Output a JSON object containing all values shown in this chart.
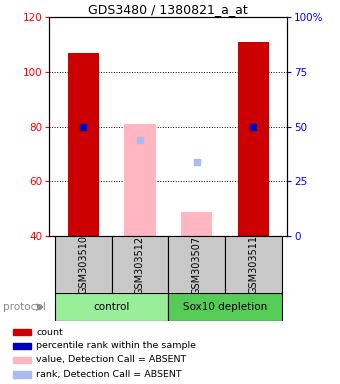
{
  "title": "GDS3480 / 1380821_a_at",
  "samples": [
    "GSM303510",
    "GSM303512",
    "GSM303507",
    "GSM303511"
  ],
  "bar_bottom": 40,
  "bar_tops": [
    107,
    81,
    49,
    111
  ],
  "bar_colors": [
    "#CC0000",
    "#FFB6C1",
    "#FFB6C1",
    "#CC0000"
  ],
  "rank_values": [
    80,
    75,
    67,
    80
  ],
  "rank_colors": [
    "#0000BB",
    "#AABBEE",
    "#AABBEE",
    "#0000BB"
  ],
  "detection_absent": [
    false,
    true,
    true,
    false
  ],
  "ylim_left": [
    40,
    120
  ],
  "ylim_right": [
    0,
    100
  ],
  "yticks_left": [
    40,
    60,
    80,
    100,
    120
  ],
  "yticks_right": [
    0,
    25,
    50,
    75,
    100
  ],
  "ytick_labels_right": [
    "0",
    "25",
    "50",
    "75",
    "100%"
  ],
  "grid_levels": [
    100,
    80,
    60
  ],
  "legend_colors": [
    "#CC0000",
    "#0000BB",
    "#FFB6C1",
    "#AABBEE"
  ],
  "legend_labels": [
    "count",
    "percentile rank within the sample",
    "value, Detection Call = ABSENT",
    "rank, Detection Call = ABSENT"
  ],
  "protocol_label": "protocol",
  "group_info": [
    {
      "indices": [
        0,
        1
      ],
      "label": "control",
      "color": "#99EE99"
    },
    {
      "indices": [
        2,
        3
      ],
      "label": "Sox10 depletion",
      "color": "#55CC55"
    }
  ],
  "sample_box_color": "#C8C8C8",
  "bar_width": 0.55
}
